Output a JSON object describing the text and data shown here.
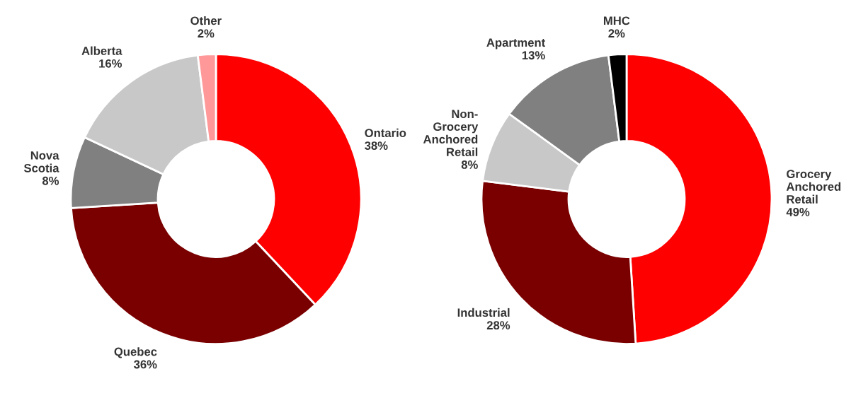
{
  "chart_data": [
    {
      "type": "donut",
      "categories": [
        "Ontario",
        "Quebec",
        "Nova\nScotia",
        "Alberta",
        "Other"
      ],
      "values": [
        38,
        36,
        8,
        16,
        2
      ],
      "colors": [
        "#ff0000",
        "#7a0000",
        "#808080",
        "#c8c8c8",
        "#ff9999"
      ],
      "value_labels": [
        "38%",
        "36%",
        "8%",
        "16%",
        "2%"
      ]
    },
    {
      "type": "donut",
      "categories": [
        "Grocery\nAnchored\nRetail",
        "Industrial",
        "Non-\nGrocery\nAnchored\nRetail",
        "Apartment",
        "MHC"
      ],
      "values": [
        49,
        28,
        8,
        13,
        2
      ],
      "colors": [
        "#ff0000",
        "#7a0000",
        "#c8c8c8",
        "#808080",
        "#000000"
      ],
      "value_labels": [
        "49%",
        "28%",
        "8%",
        "13%",
        "2%"
      ]
    }
  ]
}
